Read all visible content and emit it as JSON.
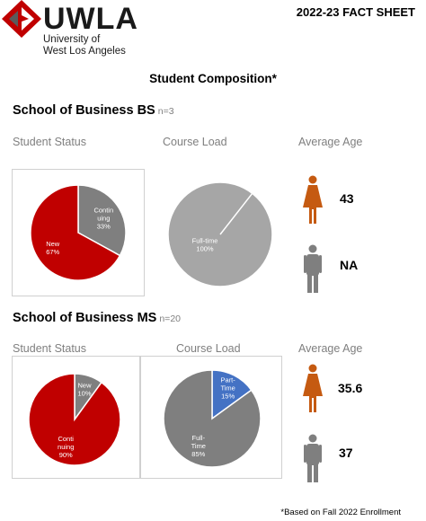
{
  "header": {
    "logo_text": "UWLA",
    "logo_sub1": "University of",
    "logo_sub2": "West Los Angeles",
    "fact_sheet": "2022-23 FACT SHEET"
  },
  "section_title": "Student Composition*",
  "bs": {
    "title": "School of Business BS",
    "n": "n=3",
    "status_label": "Student Status",
    "load_label": "Course Load",
    "age_label": "Average Age",
    "female_age": "43",
    "male_age": "NA"
  },
  "ms": {
    "title": "School of Business MS",
    "n": "n=20",
    "status_label": "Student Status",
    "load_label": "Course Load",
    "age_label": "Average Age",
    "female_age": "35.6",
    "male_age": "37"
  },
  "footnote": "*Based on Fall 2022 Enrollment",
  "colors": {
    "red": "#c00000",
    "gray": "#7f7f7f",
    "lightgray": "#a6a6a6",
    "blue": "#4472c4",
    "orange": "#c55a11"
  },
  "chart_data": [
    {
      "type": "pie",
      "id": "bs-status",
      "slices": [
        {
          "label_lines": [
            "Contin",
            "uing",
            "33%"
          ],
          "value": 33,
          "color": "#7f7f7f"
        },
        {
          "label_lines": [
            "New",
            "67%"
          ],
          "value": 67,
          "color": "#c00000"
        }
      ]
    },
    {
      "type": "pie",
      "id": "bs-load",
      "slices": [
        {
          "label_lines": [
            "Full-time",
            "100%"
          ],
          "value": 100,
          "color": "#a6a6a6"
        }
      ]
    },
    {
      "type": "pie",
      "id": "ms-status",
      "slices": [
        {
          "label_lines": [
            "New",
            "10%"
          ],
          "value": 10,
          "color": "#7f7f7f"
        },
        {
          "label_lines": [
            "Conti",
            "nuing",
            "90%"
          ],
          "value": 90,
          "color": "#c00000"
        }
      ]
    },
    {
      "type": "pie",
      "id": "ms-load",
      "slices": [
        {
          "label_lines": [
            "Part-",
            "Time",
            "15%"
          ],
          "value": 15,
          "color": "#4472c4"
        },
        {
          "label_lines": [
            "Full-",
            "Time",
            "85%"
          ],
          "value": 85,
          "color": "#7f7f7f"
        }
      ]
    }
  ]
}
